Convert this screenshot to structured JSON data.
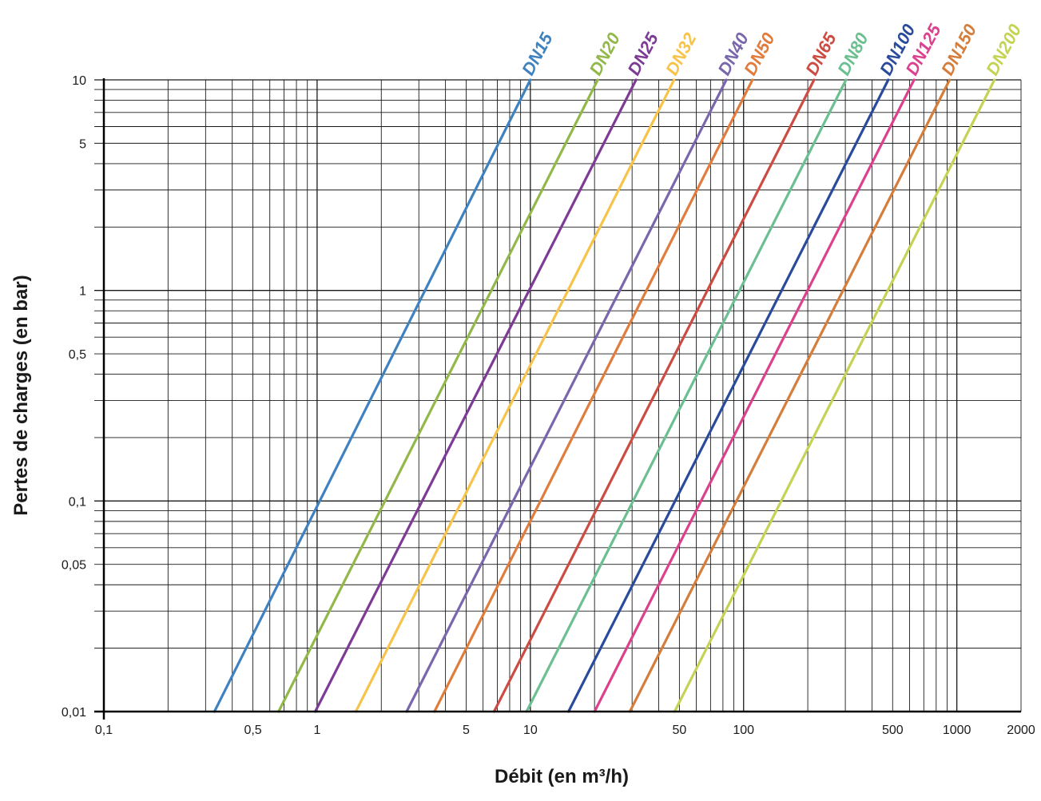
{
  "chart_data": {
    "type": "line",
    "title": "",
    "xlabel": "Débit (en m³/h)",
    "ylabel": "Pertes de charges (en bar)",
    "x_scale": "log",
    "y_scale": "log",
    "xlim": [
      0.1,
      2000
    ],
    "ylim": [
      0.01,
      10
    ],
    "grid": true,
    "legend": "curve labels at top end of each line",
    "x_ticks": [
      {
        "value": 0.1,
        "label": "0,1"
      },
      {
        "value": 0.5,
        "label": "0,5"
      },
      {
        "value": 1,
        "label": "1"
      },
      {
        "value": 5,
        "label": "5"
      },
      {
        "value": 10,
        "label": "10"
      },
      {
        "value": 50,
        "label": "50"
      },
      {
        "value": 100,
        "label": "100"
      },
      {
        "value": 500,
        "label": "500"
      },
      {
        "value": 1000,
        "label": "1000"
      },
      {
        "value": 2000,
        "label": "2000"
      }
    ],
    "y_ticks": [
      {
        "value": 0.01,
        "label": "0,01"
      },
      {
        "value": 0.05,
        "label": "0,05"
      },
      {
        "value": 0.1,
        "label": "0,1"
      },
      {
        "value": 0.5,
        "label": "0,5"
      },
      {
        "value": 1,
        "label": "1"
      },
      {
        "value": 5,
        "label": "5"
      },
      {
        "value": 10,
        "label": "10"
      }
    ],
    "series": [
      {
        "name": "DN15",
        "color": "#3f82bf",
        "x": [
          0.33,
          10.0
        ],
        "y": [
          0.01,
          10
        ]
      },
      {
        "name": "DN20",
        "color": "#93b84a",
        "x": [
          0.66,
          20.7
        ],
        "y": [
          0.01,
          10
        ]
      },
      {
        "name": "DN25",
        "color": "#7d3b96",
        "x": [
          0.98,
          31.3
        ],
        "y": [
          0.01,
          10
        ]
      },
      {
        "name": "DN32",
        "color": "#f7c34a",
        "x": [
          1.52,
          47.2
        ],
        "y": [
          0.01,
          10
        ]
      },
      {
        "name": "DN40",
        "color": "#7966ad",
        "x": [
          2.63,
          83.0
        ],
        "y": [
          0.01,
          10
        ]
      },
      {
        "name": "DN50",
        "color": "#e17c3d",
        "x": [
          3.55,
          110.0
        ],
        "y": [
          0.01,
          10
        ]
      },
      {
        "name": "DN65",
        "color": "#cc4b43",
        "x": [
          6.76,
          214.0
        ],
        "y": [
          0.01,
          10
        ]
      },
      {
        "name": "DN80",
        "color": "#6cbf91",
        "x": [
          9.6,
          302.0
        ],
        "y": [
          0.01,
          10
        ]
      },
      {
        "name": "DN100",
        "color": "#2a4b9b",
        "x": [
          15.1,
          477.0
        ],
        "y": [
          0.01,
          10
        ]
      },
      {
        "name": "DN125",
        "color": "#db418d",
        "x": [
          20.0,
          630.0
        ],
        "y": [
          0.01,
          10
        ]
      },
      {
        "name": "DN150",
        "color": "#d57d3b",
        "x": [
          29.3,
          925.0
        ],
        "y": [
          0.01,
          10
        ]
      },
      {
        "name": "DN200",
        "color": "#c4d354",
        "x": [
          47.5,
          1500.0
        ],
        "y": [
          0.01,
          10
        ]
      }
    ]
  }
}
